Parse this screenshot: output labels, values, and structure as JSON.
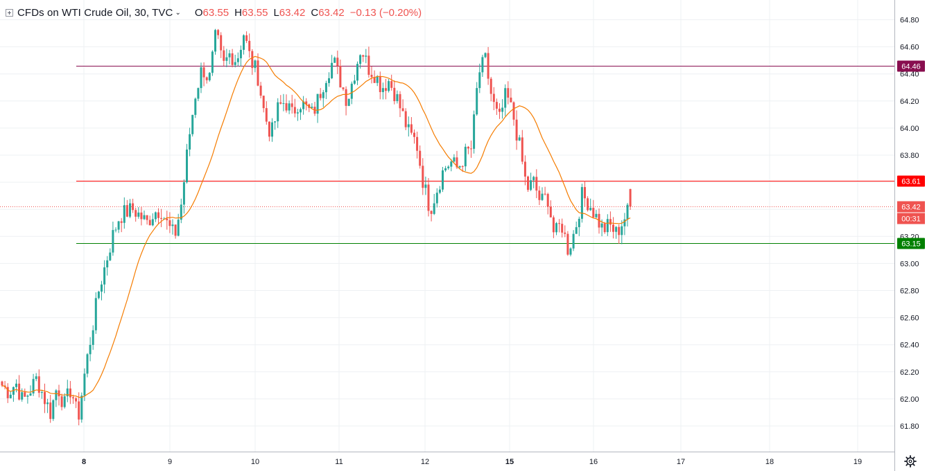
{
  "legend": {
    "symbol_title": "CFDs on WTI Crude Oil, 30, TVC",
    "chevron_icon": "chevron-down-icon",
    "expand_icon": "plus-square-icon",
    "open_label": "O",
    "open_value": "63.55",
    "high_label": "H",
    "high_value": "63.55",
    "low_label": "L",
    "low_value": "63.42",
    "close_label": "C",
    "close_value": "63.42",
    "change": "−0.13 (−0.20%)"
  },
  "price_axis": {
    "ticks": [
      "64.80",
      "64.60",
      "64.40",
      "64.20",
      "64.00",
      "63.80",
      "63.60",
      "63.40",
      "63.20",
      "63.00",
      "62.80",
      "62.60",
      "62.40",
      "62.20",
      "62.00",
      "61.80"
    ]
  },
  "time_axis": {
    "ticks": [
      "8",
      "9",
      "10",
      "11",
      "12",
      "15",
      "16",
      "17",
      "18",
      "19"
    ],
    "bold_ticks": [
      "8",
      "15"
    ]
  },
  "horizontal_lines": [
    {
      "price": 64.46,
      "label": "64.46",
      "color": "#880e4f"
    },
    {
      "price": 63.61,
      "label": "63.61",
      "color": "#ff0000"
    },
    {
      "price": 63.15,
      "label": "63.15",
      "color": "#008000"
    }
  ],
  "last_price": {
    "price": 63.42,
    "label": "63.42",
    "countdown": "00:31",
    "color": "#ef5350"
  },
  "colors": {
    "up": "#26a69a",
    "down": "#ef5350",
    "ma": "#f57c00",
    "grid": "#eef0f3"
  },
  "settings_icon": "gear-icon",
  "chart_data": {
    "type": "candlestick",
    "title": "CFDs on WTI Crude Oil, 30, TVC",
    "ylim": [
      61.65,
      64.95
    ],
    "y_ticks": [
      61.8,
      62.0,
      62.2,
      62.4,
      62.6,
      62.8,
      63.0,
      63.2,
      63.4,
      63.6,
      63.8,
      64.0,
      64.2,
      64.4,
      64.6,
      64.8
    ],
    "x_ticks": [
      "8",
      "9",
      "10",
      "11",
      "12",
      "15",
      "16",
      "17",
      "18",
      "19"
    ],
    "levels": [
      64.46,
      63.61,
      63.15
    ],
    "last": 63.42,
    "close_path": [
      62.1,
      62.05,
      62.12,
      61.98,
      62.06,
      62.15,
      62.02,
      61.9,
      62.1,
      61.95,
      62.08,
      61.85,
      62.2,
      62.5,
      62.8,
      63.0,
      63.2,
      63.35,
      63.38,
      63.4,
      63.35,
      63.3,
      63.38,
      63.4,
      63.28,
      63.2,
      63.45,
      63.9,
      64.25,
      64.45,
      64.35,
      64.7,
      64.45,
      64.55,
      64.5,
      64.7,
      64.5,
      64.4,
      64.1,
      63.95,
      64.15,
      64.2,
      64.1,
      64.2,
      64.15,
      64.1,
      64.25,
      64.4,
      64.5,
      64.35,
      64.2,
      64.4,
      64.6,
      64.45,
      64.4,
      64.3,
      64.35,
      64.25,
      64.1,
      63.95,
      63.9,
      63.6,
      63.4,
      63.55,
      63.7,
      63.75,
      63.7,
      63.8,
      63.85,
      64.4,
      64.5,
      64.2,
      64.05,
      64.25,
      64.1,
      63.85,
      63.55,
      63.6,
      63.45,
      63.5,
      63.2,
      63.3,
      63.1,
      63.25,
      63.5,
      63.45,
      63.35,
      63.25,
      63.28,
      63.22,
      63.32,
      63.42
    ]
  }
}
